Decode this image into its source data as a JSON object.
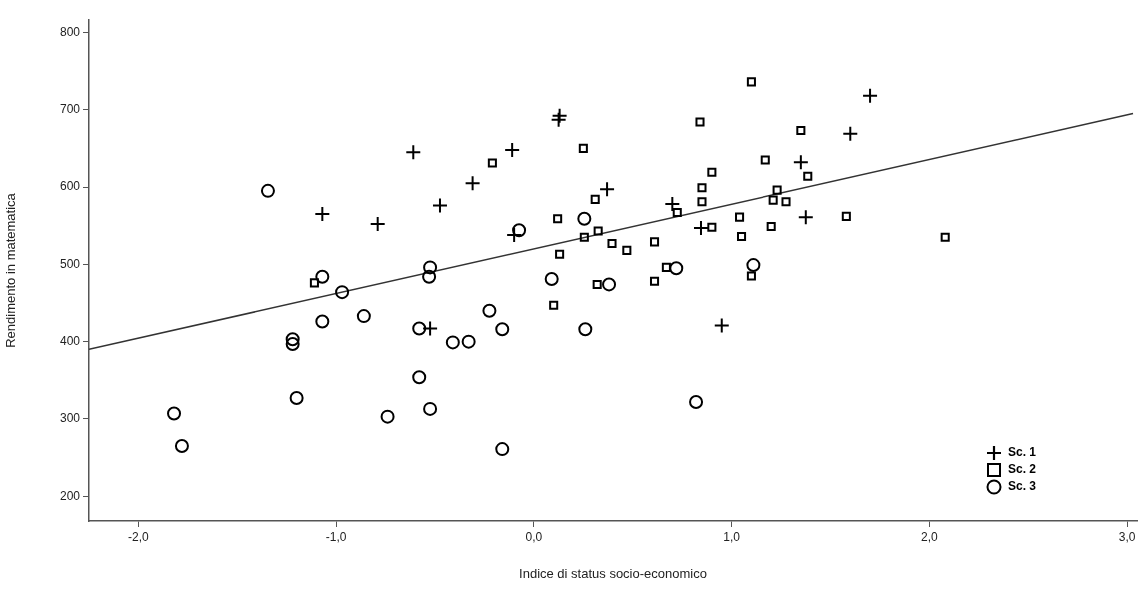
{
  "chart_data": {
    "type": "scatter",
    "xlabel": "Indice di status socio-economico",
    "ylabel": "Rendimento in matematica",
    "xlim": [
      -2.25,
      3.05
    ],
    "ylim": [
      168,
      816
    ],
    "xticks": [
      {
        "value": -2,
        "label": "-2,0"
      },
      {
        "value": -1,
        "label": "-1,0"
      },
      {
        "value": 0,
        "label": "0,0"
      },
      {
        "value": 1,
        "label": "1,0"
      },
      {
        "value": 2,
        "label": "2,0"
      },
      {
        "value": 3,
        "label": "3,0"
      }
    ],
    "yticks": [
      200,
      300,
      400,
      500,
      600,
      700,
      800
    ],
    "grid": false,
    "legend": "bottom right",
    "series": [
      {
        "name": "Sc. 1",
        "color": "#000000",
        "marker": "cross",
        "x": [
          -0.61,
          -1.07,
          -0.79,
          -0.475,
          -0.31,
          -0.525,
          -0.11,
          0.125,
          0.13,
          0.37,
          0.7,
          0.845,
          1.7,
          1.6,
          1.35,
          1.375,
          -0.1,
          0.95
        ],
        "values": [
          645,
          565,
          552,
          576,
          605,
          417,
          648,
          687,
          692,
          597,
          578,
          547,
          718,
          669,
          632,
          561,
          538,
          421
        ]
      },
      {
        "name": "Sc. 2",
        "color": "#000000",
        "marker": "square",
        "x": [
          -1.11,
          -0.21,
          1.1,
          0.84,
          0.25,
          1.35,
          1.17,
          0.9,
          0.85,
          0.85,
          1.385,
          1.23,
          1.21,
          1.275,
          1.58,
          1.04,
          1.2,
          1.05,
          0.9,
          0.725,
          0.31,
          0.12,
          0.325,
          0.255,
          0.395,
          0.47,
          0.61,
          0.13,
          0.67,
          0.32,
          0.61,
          1.1,
          0.1,
          2.08
        ],
        "values": [
          476,
          631,
          736,
          684,
          650,
          673,
          635,
          619,
          599,
          581,
          614,
          596,
          583,
          581,
          562,
          561,
          549,
          536,
          548,
          567,
          584,
          559,
          543,
          535,
          527,
          518,
          529,
          513,
          496,
          474,
          478,
          485,
          447,
          535
        ]
      },
      {
        "name": "Sc. 3",
        "color": "#000000",
        "marker": "circle",
        "x": [
          -1.345,
          -1.07,
          -0.97,
          -0.86,
          -1.07,
          -1.22,
          -1.22,
          -1.2,
          -1.82,
          -1.78,
          -0.58,
          -0.525,
          -0.53,
          -0.41,
          -0.33,
          -0.58,
          -0.74,
          -0.525,
          -0.225,
          -0.075,
          0.255,
          0.09,
          0.38,
          0.72,
          1.11,
          -0.16,
          0.26,
          0.82,
          -0.16
        ],
        "values": [
          595,
          484,
          464,
          433,
          426,
          403,
          397,
          327,
          307,
          265,
          417,
          496,
          484,
          399,
          400,
          354,
          303,
          313,
          440,
          544,
          559,
          481,
          474,
          495,
          499,
          416,
          416,
          322,
          261
        ]
      },
      {
        "type": "line",
        "color": "#333333",
        "x": [
          -2.25,
          3.03
        ],
        "values": [
          390,
          695
        ]
      }
    ]
  }
}
